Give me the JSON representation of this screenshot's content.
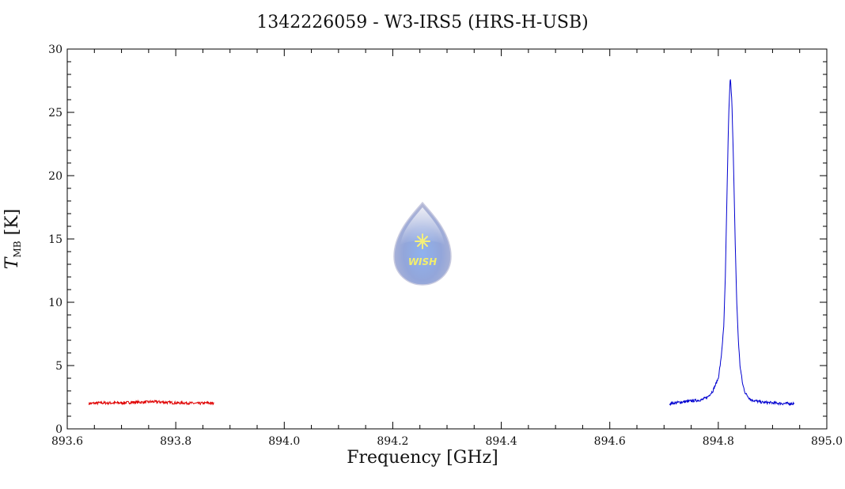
{
  "title": "1342226059 - W3-IRS5 (HRS-H-USB)",
  "logo": {
    "text": "WISH",
    "icon": "water-drop-star-icon"
  },
  "colors": {
    "series_a": "#e00000",
    "series_b": "#0000d0",
    "axis": "#000000"
  },
  "chart_data": {
    "type": "line",
    "xlabel": "Frequency [GHz]",
    "ylabel": {
      "symbol": "T",
      "subscript": "MB",
      "unit": "[K]"
    },
    "xlim": [
      893.6,
      895.0
    ],
    "ylim": [
      0,
      30
    ],
    "xticks": [
      893.6,
      893.8,
      894.0,
      894.2,
      894.4,
      894.6,
      894.8,
      895.0
    ],
    "xtick_labels": [
      "893.6",
      "893.8",
      "894.0",
      "894.2",
      "894.4",
      "894.6",
      "894.8",
      "895.0"
    ],
    "yticks": [
      0,
      5,
      10,
      15,
      20,
      25,
      30
    ],
    "ytick_labels": [
      "0",
      "5",
      "10",
      "15",
      "20",
      "25",
      "30"
    ],
    "grid": false,
    "series": [
      {
        "color": "#e00000",
        "x": [
          893.64,
          893.66,
          893.68,
          893.7,
          893.72,
          893.74,
          893.76,
          893.78,
          893.8,
          893.82,
          893.84,
          893.86,
          893.87
        ],
        "y": [
          2.0,
          2.05,
          2.05,
          2.05,
          2.1,
          2.1,
          2.15,
          2.1,
          2.05,
          2.05,
          2.0,
          2.05,
          2.0
        ]
      },
      {
        "color": "#0000d0",
        "x": [
          894.71,
          894.73,
          894.75,
          894.77,
          894.78,
          894.79,
          894.8,
          894.805,
          894.81,
          894.813,
          894.816,
          894.819,
          894.822,
          894.825,
          894.828,
          894.831,
          894.834,
          894.837,
          894.84,
          894.845,
          894.85,
          894.86,
          894.88,
          894.9,
          894.92,
          894.94
        ],
        "y": [
          2.0,
          2.1,
          2.2,
          2.3,
          2.5,
          3.0,
          4.0,
          5.5,
          8.0,
          12.0,
          18.5,
          24.5,
          27.8,
          26.0,
          21.0,
          15.0,
          10.0,
          7.0,
          5.0,
          3.5,
          2.8,
          2.3,
          2.1,
          2.05,
          2.0,
          2.0
        ]
      }
    ]
  }
}
